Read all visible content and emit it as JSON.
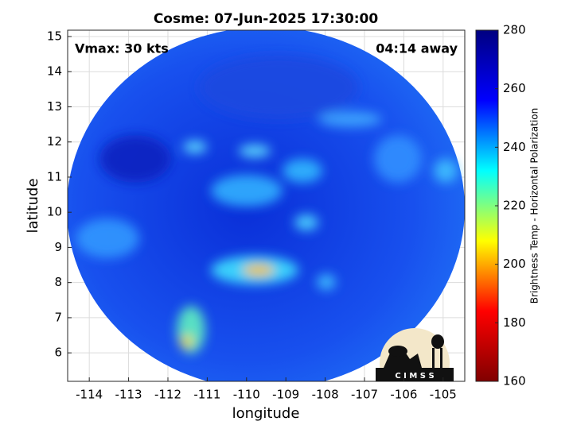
{
  "chart_data": {
    "type": "image",
    "title": "Cosme: 07-Jun-2025 17:30:00",
    "annotations": [
      "Vmax: 30 kts",
      "04:14 away"
    ],
    "x_label": "longitude",
    "y_label": "latitude",
    "xlim": [
      -114.55,
      -104.45
    ],
    "xticks": [
      -114,
      -113,
      -112,
      -111,
      -110,
      -109,
      -108,
      -107,
      -106,
      -105
    ],
    "ylim": [
      5.19,
      15.18
    ],
    "yticks": [
      6,
      7,
      8,
      9,
      10,
      11,
      12,
      13,
      14,
      15
    ],
    "grid": true,
    "colorbar": {
      "label": "Brightness Temp - Horizontal Polarization",
      "clim": [
        160,
        280
      ],
      "ticks": [
        160,
        180,
        200,
        220,
        240,
        260,
        280
      ],
      "colormap": [
        "#800000",
        "#ff0000",
        "#ffff00",
        "#00ffff",
        "#0000ff",
        "#000080"
      ]
    },
    "logo": "C I M S S"
  }
}
